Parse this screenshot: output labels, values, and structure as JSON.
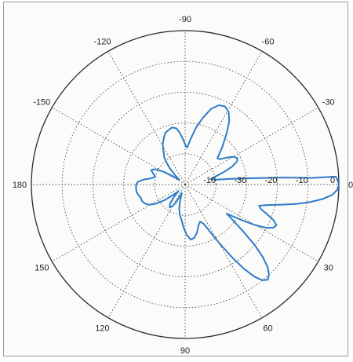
{
  "chart_data": {
    "type": "polar",
    "angle_unit": "degrees",
    "angle_direction": "clockwise",
    "angle_zero": "right",
    "angular_tick_labels": [
      "0",
      "30",
      "60",
      "90",
      "120",
      "150",
      "180",
      "-150",
      "-120",
      "-90",
      "-60",
      "-30"
    ],
    "radial_tick_labels": [
      "-10",
      "-30",
      "-20",
      "-10",
      "0"
    ],
    "radial_rings": 5,
    "grid": true,
    "series": [
      {
        "color": "#2d7cc9",
        "points": [
          [
            -3,
            0.98
          ],
          [
            -2,
            0.99
          ],
          [
            0,
            1.0
          ],
          [
            2,
            0.99
          ],
          [
            4,
            0.96
          ],
          [
            6,
            0.9
          ],
          [
            8,
            0.82
          ],
          [
            10,
            0.73
          ],
          [
            12,
            0.63
          ],
          [
            14,
            0.55
          ],
          [
            16,
            0.5
          ],
          [
            18,
            0.52
          ],
          [
            20,
            0.57
          ],
          [
            22,
            0.62
          ],
          [
            24,
            0.65
          ],
          [
            26,
            0.64
          ],
          [
            28,
            0.6
          ],
          [
            30,
            0.53
          ],
          [
            32,
            0.44
          ],
          [
            34,
            0.36
          ],
          [
            35,
            0.33
          ],
          [
            37,
            0.4
          ],
          [
            39,
            0.49
          ],
          [
            41,
            0.6
          ],
          [
            43,
            0.69
          ],
          [
            45,
            0.76
          ],
          [
            47,
            0.8
          ],
          [
            49,
            0.82
          ],
          [
            51,
            0.8
          ],
          [
            53,
            0.75
          ],
          [
            55,
            0.67
          ],
          [
            57,
            0.57
          ],
          [
            59,
            0.47
          ],
          [
            61,
            0.39
          ],
          [
            63,
            0.32
          ],
          [
            65,
            0.28
          ],
          [
            68,
            0.26
          ],
          [
            72,
            0.28
          ],
          [
            76,
            0.32
          ],
          [
            80,
            0.35
          ],
          [
            84,
            0.36
          ],
          [
            88,
            0.33
          ],
          [
            92,
            0.28
          ],
          [
            96,
            0.23
          ],
          [
            100,
            0.2
          ],
          [
            104,
            0.16
          ],
          [
            108,
            0.1
          ],
          [
            111,
            0.06
          ],
          [
            114,
            0.08
          ],
          [
            117,
            0.13
          ],
          [
            120,
            0.16
          ],
          [
            124,
            0.18
          ],
          [
            128,
            0.16
          ],
          [
            132,
            0.11
          ],
          [
            135,
            0.06
          ],
          [
            139,
            0.1
          ],
          [
            143,
            0.17
          ],
          [
            147,
            0.23
          ],
          [
            151,
            0.27
          ],
          [
            155,
            0.29
          ],
          [
            159,
            0.3
          ],
          [
            163,
            0.3
          ],
          [
            167,
            0.31
          ],
          [
            171,
            0.32
          ],
          [
            175,
            0.32
          ],
          [
            179,
            0.32
          ],
          [
            183,
            0.31
          ],
          [
            187,
            0.27
          ],
          [
            191,
            0.22
          ],
          [
            195,
            0.2
          ],
          [
            199,
            0.22
          ],
          [
            203,
            0.24
          ],
          [
            207,
            0.22
          ],
          [
            211,
            0.16
          ],
          [
            215,
            0.08
          ],
          [
            219,
            0.05
          ],
          [
            223,
            0.09
          ],
          [
            227,
            0.15
          ],
          [
            230,
            0.19
          ],
          [
            232,
            0.22
          ],
          [
            235,
            0.24
          ],
          [
            238,
            0.27
          ],
          [
            241,
            0.3
          ],
          [
            245,
            0.33
          ],
          [
            249,
            0.36
          ],
          [
            253,
            0.37
          ],
          [
            257,
            0.38
          ],
          [
            261,
            0.37
          ],
          [
            264,
            0.34
          ],
          [
            267,
            0.3
          ],
          [
            270,
            0.26
          ],
          [
            273,
            0.24
          ],
          [
            277,
            0.3
          ],
          [
            281,
            0.38
          ],
          [
            285,
            0.45
          ],
          [
            289,
            0.52
          ],
          [
            293,
            0.56
          ],
          [
            297,
            0.57
          ],
          [
            301,
            0.55
          ],
          [
            305,
            0.5
          ],
          [
            309,
            0.43
          ],
          [
            312,
            0.38
          ],
          [
            315,
            0.34
          ],
          [
            318,
            0.3
          ],
          [
            321,
            0.27
          ],
          [
            324,
            0.28
          ],
          [
            327,
            0.32
          ],
          [
            330,
            0.36
          ],
          [
            333,
            0.38
          ],
          [
            336,
            0.37
          ],
          [
            339,
            0.33
          ],
          [
            342,
            0.27
          ],
          [
            345,
            0.21
          ],
          [
            348,
            0.17
          ],
          [
            351,
            0.2
          ],
          [
            353,
            0.3
          ],
          [
            355,
            0.48
          ],
          [
            356,
            0.65
          ],
          [
            357,
            0.82
          ],
          [
            357,
            0.98
          ]
        ]
      }
    ]
  }
}
